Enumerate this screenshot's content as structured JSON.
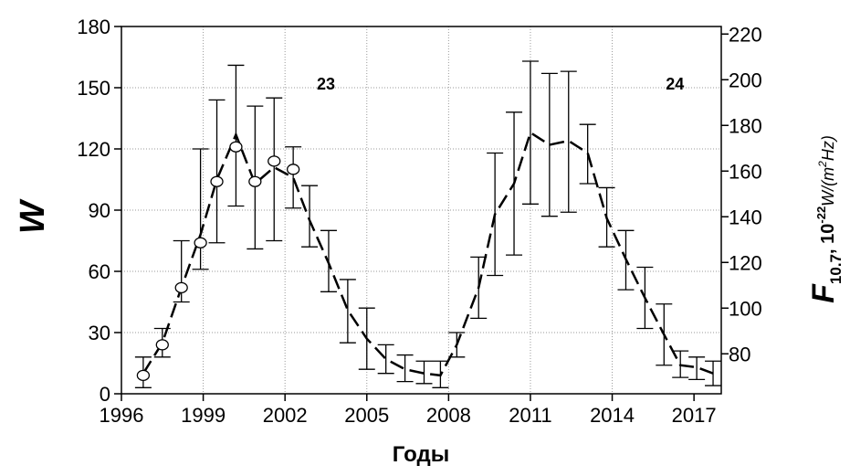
{
  "chart_data": {
    "type": "line",
    "xlabel": "Годы",
    "ylabel": "W",
    "y2label": {
      "symbol": "F",
      "subscript": "10.7",
      "sep": ", ",
      "mantissa": "10",
      "exponent": "-22",
      "unit_a": "W/(m",
      "unit_exp": "2",
      "unit_b": "Hz)"
    },
    "xlim": [
      1996,
      2018
    ],
    "ylim": [
      0,
      180
    ],
    "y2lim": [
      62.5,
      223.3
    ],
    "xticks": [
      "1996",
      "1999",
      "2002",
      "2005",
      "2008",
      "2011",
      "2014",
      "2017"
    ],
    "yticks": [
      "0",
      "30",
      "60",
      "90",
      "120",
      "150",
      "180"
    ],
    "y2ticks": [
      "80",
      "100",
      "120",
      "140",
      "160",
      "180",
      "200",
      "220"
    ],
    "grid": true,
    "annotations": [
      {
        "text": "23",
        "x": 2003.5,
        "y": 149
      },
      {
        "text": "24",
        "x": 2016.3,
        "y": 149
      }
    ],
    "series": [
      {
        "style": "dashed-line-with-errorbars",
        "points": [
          {
            "x": 1996.8,
            "y": 10,
            "lo": 3,
            "hi": 18
          },
          {
            "x": 1997.5,
            "y": 25,
            "lo": 18,
            "hi": 32
          },
          {
            "x": 1998.2,
            "y": 52,
            "lo": 45,
            "hi": 75
          },
          {
            "x": 1998.9,
            "y": 78,
            "lo": 61,
            "hi": 120
          },
          {
            "x": 1999.5,
            "y": 105,
            "lo": 74,
            "hi": 144
          },
          {
            "x": 2000.2,
            "y": 127,
            "lo": 92,
            "hi": 161
          },
          {
            "x": 2000.9,
            "y": 103,
            "lo": 71,
            "hi": 141
          },
          {
            "x": 2001.6,
            "y": 111,
            "lo": 75,
            "hi": 145
          },
          {
            "x": 2002.3,
            "y": 106,
            "lo": 91,
            "hi": 121
          },
          {
            "x": 2002.9,
            "y": 85,
            "lo": 72,
            "hi": 102
          },
          {
            "x": 2003.6,
            "y": 64,
            "lo": 50,
            "hi": 80
          },
          {
            "x": 2004.3,
            "y": 41,
            "lo": 25,
            "hi": 56
          },
          {
            "x": 2005.0,
            "y": 27,
            "lo": 12,
            "hi": 42
          },
          {
            "x": 2005.7,
            "y": 17,
            "lo": 10,
            "hi": 24
          },
          {
            "x": 2006.4,
            "y": 12,
            "lo": 6,
            "hi": 19
          },
          {
            "x": 2007.1,
            "y": 10,
            "lo": 5,
            "hi": 16
          },
          {
            "x": 2007.7,
            "y": 9,
            "lo": 3,
            "hi": 16
          },
          {
            "x": 2008.3,
            "y": 24,
            "lo": 18,
            "hi": 30
          },
          {
            "x": 2009.1,
            "y": 52,
            "lo": 37,
            "hi": 67
          },
          {
            "x": 2009.7,
            "y": 88,
            "lo": 58,
            "hi": 118
          },
          {
            "x": 2010.4,
            "y": 103,
            "lo": 68,
            "hi": 138
          },
          {
            "x": 2011.0,
            "y": 128,
            "lo": 93,
            "hi": 163
          },
          {
            "x": 2011.7,
            "y": 122,
            "lo": 87,
            "hi": 157
          },
          {
            "x": 2012.4,
            "y": 124,
            "lo": 89,
            "hi": 158
          },
          {
            "x": 2013.1,
            "y": 118,
            "lo": 103,
            "hi": 132
          },
          {
            "x": 2013.8,
            "y": 86,
            "lo": 72,
            "hi": 101
          },
          {
            "x": 2014.5,
            "y": 66,
            "lo": 51,
            "hi": 80
          },
          {
            "x": 2015.2,
            "y": 47,
            "lo": 32,
            "hi": 62
          },
          {
            "x": 2015.9,
            "y": 29,
            "lo": 14,
            "hi": 44
          },
          {
            "x": 2016.5,
            "y": 14,
            "lo": 8,
            "hi": 21
          },
          {
            "x": 2017.1,
            "y": 13,
            "lo": 7,
            "hi": 18
          },
          {
            "x": 2017.7,
            "y": 10,
            "lo": 4,
            "hi": 16
          }
        ]
      },
      {
        "style": "open-circles",
        "points": [
          {
            "x": 1996.8,
            "y": 9
          },
          {
            "x": 1997.5,
            "y": 24
          },
          {
            "x": 1998.2,
            "y": 52
          },
          {
            "x": 1998.9,
            "y": 74
          },
          {
            "x": 1999.5,
            "y": 104
          },
          {
            "x": 2000.2,
            "y": 121
          },
          {
            "x": 2000.9,
            "y": 104
          },
          {
            "x": 2001.6,
            "y": 114
          },
          {
            "x": 2002.3,
            "y": 110
          }
        ]
      }
    ]
  }
}
